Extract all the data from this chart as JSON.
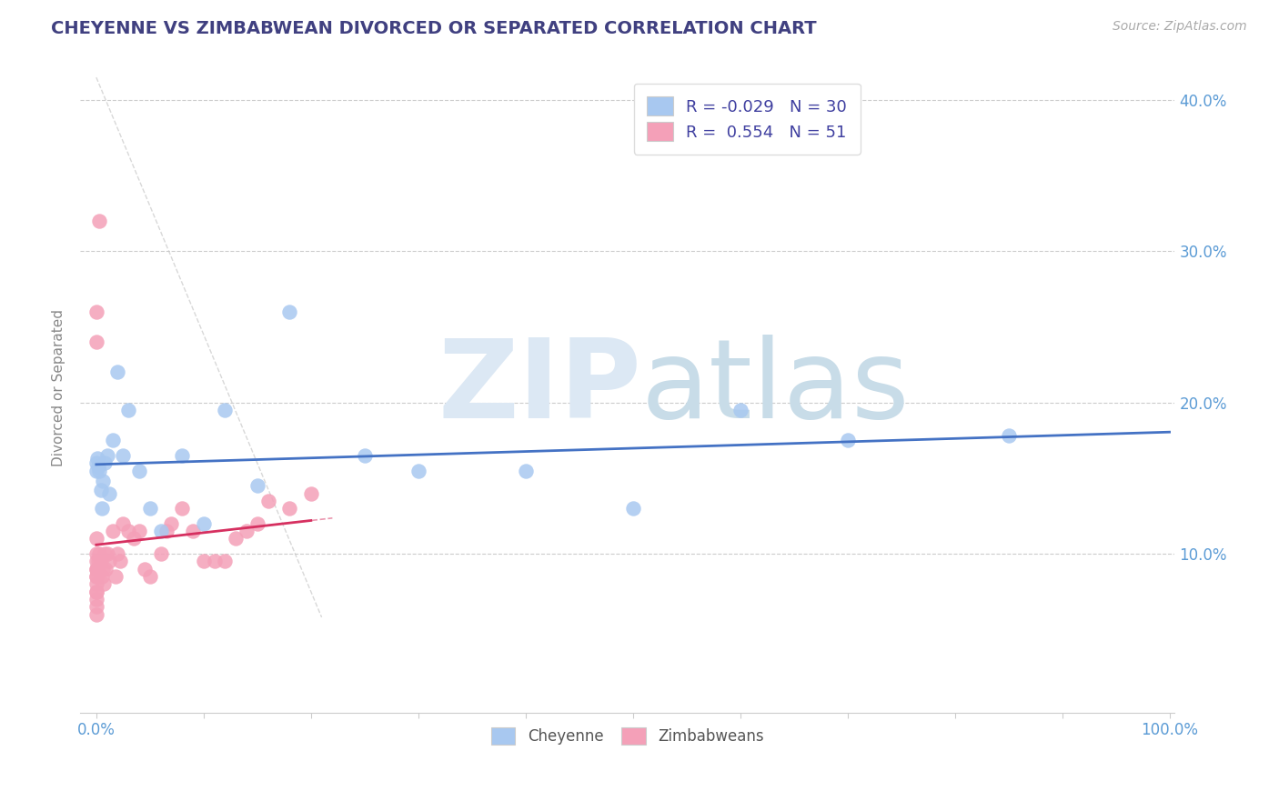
{
  "title": "CHEYENNE VS ZIMBABWEAN DIVORCED OR SEPARATED CORRELATION CHART",
  "source": "Source: ZipAtlas.com",
  "ylabel": "Divorced or Separated",
  "legend_r_cheyenne": "-0.029",
  "legend_n_cheyenne": "30",
  "legend_r_zimbabwe": "0.554",
  "legend_n_zimbabwe": "51",
  "cheyenne_color": "#a8c8f0",
  "zimbabwe_color": "#f4a0b8",
  "trend_cheyenne_color": "#4472c4",
  "trend_zimbabwe_color": "#d63060",
  "background_color": "#ffffff",
  "grid_color": "#cccccc",
  "tick_label_color": "#5b9bd5",
  "title_color": "#404080",
  "source_color": "#aaaaaa",
  "legend_text_color": "#4040a0",
  "cheyenne_points_x": [
    0.0,
    0.0,
    0.001,
    0.002,
    0.003,
    0.004,
    0.005,
    0.006,
    0.008,
    0.01,
    0.012,
    0.015,
    0.02,
    0.025,
    0.03,
    0.04,
    0.05,
    0.06,
    0.08,
    0.1,
    0.12,
    0.15,
    0.18,
    0.25,
    0.3,
    0.4,
    0.5,
    0.6,
    0.7,
    0.85
  ],
  "cheyenne_points_y": [
    0.16,
    0.155,
    0.163,
    0.158,
    0.155,
    0.142,
    0.13,
    0.148,
    0.16,
    0.165,
    0.14,
    0.175,
    0.22,
    0.165,
    0.195,
    0.155,
    0.13,
    0.115,
    0.165,
    0.12,
    0.195,
    0.145,
    0.26,
    0.165,
    0.155,
    0.155,
    0.13,
    0.195,
    0.175,
    0.178
  ],
  "zimbabwe_points_x": [
    0.0,
    0.0,
    0.0,
    0.0,
    0.0,
    0.0,
    0.0,
    0.0,
    0.0,
    0.0,
    0.0,
    0.0,
    0.0,
    0.0,
    0.0,
    0.001,
    0.002,
    0.003,
    0.004,
    0.005,
    0.006,
    0.007,
    0.008,
    0.009,
    0.01,
    0.012,
    0.015,
    0.018,
    0.02,
    0.022,
    0.025,
    0.03,
    0.035,
    0.04,
    0.045,
    0.05,
    0.06,
    0.065,
    0.07,
    0.08,
    0.09,
    0.1,
    0.11,
    0.12,
    0.13,
    0.14,
    0.15,
    0.16,
    0.18,
    0.2,
    0.003
  ],
  "zimbabwe_points_y": [
    0.26,
    0.24,
    0.1,
    0.09,
    0.085,
    0.11,
    0.075,
    0.06,
    0.08,
    0.07,
    0.085,
    0.09,
    0.095,
    0.075,
    0.065,
    0.09,
    0.095,
    0.1,
    0.095,
    0.085,
    0.09,
    0.08,
    0.1,
    0.09,
    0.1,
    0.095,
    0.115,
    0.085,
    0.1,
    0.095,
    0.12,
    0.115,
    0.11,
    0.115,
    0.09,
    0.085,
    0.1,
    0.115,
    0.12,
    0.13,
    0.115,
    0.095,
    0.095,
    0.095,
    0.11,
    0.115,
    0.12,
    0.135,
    0.13,
    0.14,
    0.32
  ],
  "xlim": [
    -0.015,
    1.005
  ],
  "ylim": [
    -0.005,
    0.425
  ],
  "ytick_positions": [
    0.0,
    0.1,
    0.2,
    0.3,
    0.4
  ],
  "ytick_labels": [
    "",
    "10.0%",
    "20.0%",
    "30.0%",
    "40.0%"
  ],
  "xtick_minor_count": 10,
  "watermark_zip": "ZIP",
  "watermark_atlas": "atlas",
  "watermark_zip_color": "#dce8f4",
  "watermark_atlas_color": "#c8dce8"
}
